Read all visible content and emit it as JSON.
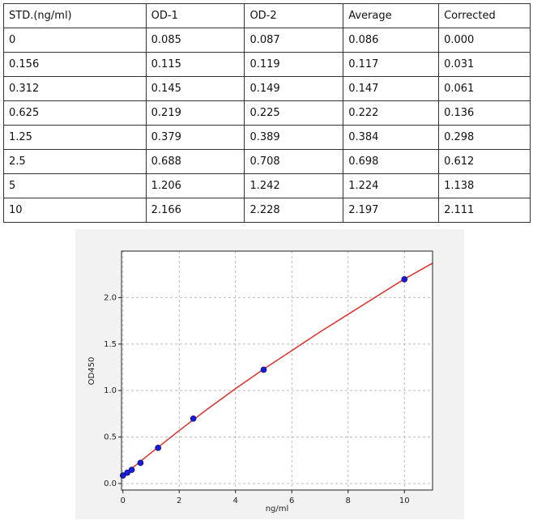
{
  "table": {
    "header": [
      "STD.(ng/ml)",
      "OD-1",
      "OD-2",
      "Average",
      "Corrected"
    ],
    "rows": [
      [
        "0",
        "0.085",
        "0.087",
        "0.086",
        "0.000"
      ],
      [
        "0.156",
        "0.115",
        "0.119",
        "0.117",
        "0.031"
      ],
      [
        "0.312",
        "0.145",
        "0.149",
        "0.147",
        "0.061"
      ],
      [
        "0.625",
        "0.219",
        "0.225",
        "0.222",
        "0.136"
      ],
      [
        "1.25",
        "0.379",
        "0.389",
        "0.384",
        "0.298"
      ],
      [
        "2.5",
        "0.688",
        "0.708",
        "0.698",
        "0.612"
      ],
      [
        "5",
        "1.206",
        "1.242",
        "1.224",
        "1.138"
      ],
      [
        "10",
        "2.166",
        "2.228",
        "2.197",
        "2.111"
      ]
    ]
  },
  "chart_data": {
    "type": "scatter",
    "x_label": "ng/ml",
    "y_label": "OD450",
    "xlim": [
      -0.05,
      11
    ],
    "ylim": [
      -0.07,
      2.5
    ],
    "xticks": [
      0,
      2,
      4,
      6,
      8,
      10
    ],
    "yticks": [
      {
        "value": 0,
        "label": "0.0"
      },
      {
        "value": 0.5,
        "label": "0.5"
      },
      {
        "value": 1,
        "label": "1.0"
      },
      {
        "value": 1.5,
        "label": "1.5"
      },
      {
        "value": 2,
        "label": "2.0"
      }
    ],
    "grid": true,
    "series": [
      {
        "type": "scatter",
        "color": "#1a1adb",
        "x": [
          0,
          0.156,
          0.312,
          0.625,
          1.25,
          2.5,
          5,
          10
        ],
        "values": [
          0.086,
          0.117,
          0.147,
          0.222,
          0.384,
          0.698,
          1.224,
          2.197
        ]
      },
      {
        "type": "line",
        "color": "#e0302a",
        "x": [
          0,
          1,
          2,
          3,
          4,
          5,
          6,
          7,
          8,
          9,
          10,
          11
        ],
        "values": [
          0.085,
          0.33,
          0.57,
          0.8,
          1.02,
          1.23,
          1.43,
          1.63,
          1.82,
          2.01,
          2.2,
          2.37
        ]
      }
    ]
  }
}
